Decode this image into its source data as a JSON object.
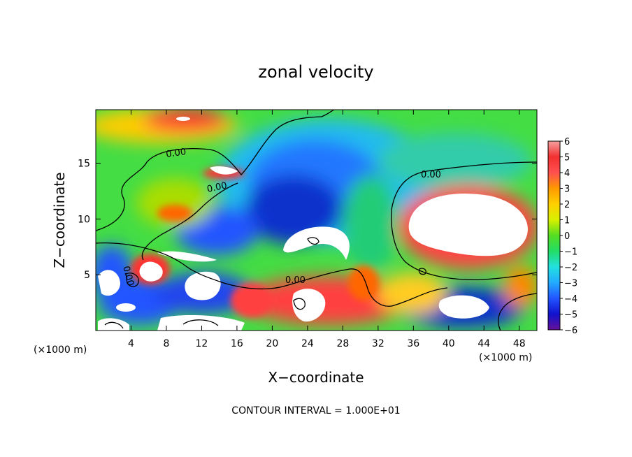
{
  "chart_data": {
    "type": "heatmap",
    "title": "zonal velocity",
    "xlabel": "X−coordinate",
    "ylabel": "Z−coordinate",
    "x_unit_left": "(×1000 m)",
    "x_unit_right": "(×1000 m)",
    "footer": "CONTOUR INTERVAL = 1.000E+01",
    "xlim": [
      0,
      50
    ],
    "ylim": [
      0,
      19.8
    ],
    "x_ticks": [
      4,
      8,
      12,
      16,
      20,
      24,
      28,
      32,
      36,
      40,
      44,
      48
    ],
    "y_ticks": [
      5,
      10,
      15
    ],
    "contour_labels": [
      "0.00",
      "0.00",
      "0.00",
      "0.00",
      "0.00"
    ],
    "colorbar": {
      "levels": [
        6,
        5,
        4,
        3,
        2,
        1,
        0,
        -1,
        -2,
        -3,
        -4,
        -5,
        -6
      ],
      "labels": [
        "6",
        "5",
        "4",
        "3",
        "2",
        "1",
        "0",
        "−1",
        "−2",
        "−3",
        "−4",
        "−5",
        "−6"
      ],
      "colors": [
        "#f6a0a0",
        "#f23030",
        "#ff5050",
        "#ff9900",
        "#ffd000",
        "#d8f000",
        "#55dd22",
        "#22dd66",
        "#22e0e0",
        "#22aaff",
        "#2255ff",
        "#1111cc",
        "#661199"
      ]
    }
  }
}
